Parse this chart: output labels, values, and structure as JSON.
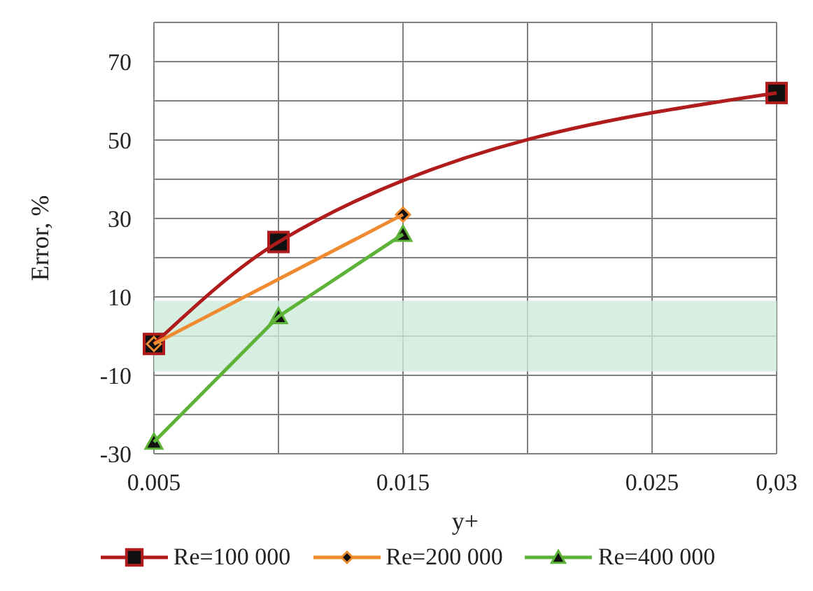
{
  "chart_data": {
    "type": "line",
    "xlabel": "y+",
    "ylabel": "Error, %",
    "xlim": [
      0.005,
      0.03
    ],
    "xticks": [
      0.005,
      {
        "value": 0.01,
        "label": null
      },
      0.015,
      {
        "value": 0.02,
        "label": null
      },
      0.025,
      {
        "value": 0.03,
        "label": "0,03"
      }
    ],
    "ylim": [
      -30,
      80
    ],
    "yticks": [
      -30,
      {
        "value": -20,
        "label": null
      },
      -10,
      {
        "value": 0,
        "label": null
      },
      10,
      {
        "value": 20,
        "label": null
      },
      30,
      {
        "value": 40,
        "label": null
      },
      50,
      {
        "value": 60,
        "label": null
      },
      70,
      {
        "value": 80,
        "label": null
      }
    ],
    "grid": true,
    "legend": "bottom",
    "line_style": "solid",
    "bands": [
      {
        "axis": "y",
        "from": -9,
        "to": 9,
        "color": "#cdebd9"
      }
    ],
    "series": [
      {
        "name": "Re=100 000",
        "color": "#b01c1c",
        "marker": "square",
        "x": [
          0.005,
          0.01,
          0.03
        ],
        "values": [
          -2,
          24,
          62
        ]
      },
      {
        "name": "Re=200 000",
        "color": "#f08a30",
        "marker": "diamond",
        "x": [
          0.005,
          0.015
        ],
        "values": [
          -2,
          31
        ]
      },
      {
        "name": "Re=400 000",
        "color": "#5cb338",
        "marker": "triangle",
        "x": [
          0.005,
          0.01,
          0.015
        ],
        "values": [
          -27,
          5,
          26
        ]
      }
    ]
  }
}
